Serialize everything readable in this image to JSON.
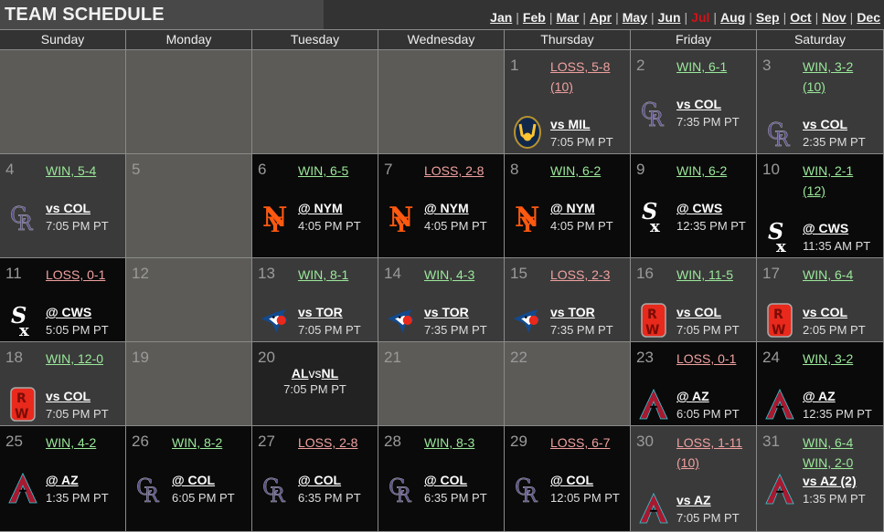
{
  "header": {
    "title": "TEAM SCHEDULE",
    "months": [
      "Jan",
      "Feb",
      "Mar",
      "Apr",
      "May",
      "Jun",
      "Jul",
      "Aug",
      "Sep",
      "Oct",
      "Nov",
      "Dec"
    ],
    "current_month": "Jul"
  },
  "weekdays": [
    "Sunday",
    "Monday",
    "Tuesday",
    "Wednesday",
    "Thursday",
    "Friday",
    "Saturday"
  ],
  "colors": {
    "win": "#9be89b",
    "loss": "#f0a0a0",
    "current_month": "#d0121b",
    "home_bg": "#3a3a3a",
    "away_bg": "#0a0a0a",
    "off_bg": "#5c5b57"
  },
  "days": [
    {
      "day": "1",
      "type": "home",
      "results": [
        {
          "t": "LOSS, 5-8",
          "k": "loss"
        },
        {
          "t": "(10)",
          "k": "loss"
        }
      ],
      "opp": "vs MIL",
      "time": "7:05 PM PT",
      "logo": "brewers-logo-icon"
    },
    {
      "day": "2",
      "type": "home",
      "results": [
        {
          "t": "WIN, 6-1",
          "k": "win"
        }
      ],
      "opp": "vs COL",
      "time": "7:35 PM PT",
      "logo": "rockies-logo-icon"
    },
    {
      "day": "3",
      "type": "home",
      "results": [
        {
          "t": "WIN, 3-2",
          "k": "win"
        },
        {
          "t": "(10)",
          "k": "win"
        }
      ],
      "opp": "vs COL",
      "time": "2:35 PM PT",
      "logo": "rockies-logo-icon"
    },
    {
      "day": "4",
      "type": "home",
      "results": [
        {
          "t": "WIN, 5-4",
          "k": "win"
        }
      ],
      "opp": "vs COL",
      "time": "7:05 PM PT",
      "logo": "rockies-logo-icon"
    },
    {
      "day": "5",
      "type": "off"
    },
    {
      "day": "6",
      "type": "away",
      "results": [
        {
          "t": "WIN, 6-5",
          "k": "win"
        }
      ],
      "opp": "@ NYM",
      "time": "4:05 PM PT",
      "logo": "mets-logo-icon"
    },
    {
      "day": "7",
      "type": "away",
      "results": [
        {
          "t": "LOSS, 2-8",
          "k": "loss"
        }
      ],
      "opp": "@ NYM",
      "time": "4:05 PM PT",
      "logo": "mets-logo-icon"
    },
    {
      "day": "8",
      "type": "away",
      "results": [
        {
          "t": "WIN, 6-2",
          "k": "win"
        }
      ],
      "opp": "@ NYM",
      "time": "4:05 PM PT",
      "logo": "mets-logo-icon"
    },
    {
      "day": "9",
      "type": "away",
      "results": [
        {
          "t": "WIN, 6-2",
          "k": "win"
        }
      ],
      "opp": "@ CWS",
      "time": "12:35 PM PT",
      "logo": "whitesox-logo-icon"
    },
    {
      "day": "10",
      "type": "away",
      "results": [
        {
          "t": "WIN, 2-1",
          "k": "win"
        },
        {
          "t": "(12)",
          "k": "win"
        }
      ],
      "opp": "@ CWS",
      "time": "11:35 AM PT",
      "logo": "whitesox-logo-icon"
    },
    {
      "day": "11",
      "type": "away",
      "results": [
        {
          "t": "LOSS, 0-1",
          "k": "loss"
        }
      ],
      "opp": "@ CWS",
      "time": "5:05 PM PT",
      "logo": "whitesox-logo-icon"
    },
    {
      "day": "12",
      "type": "off"
    },
    {
      "day": "13",
      "type": "home",
      "results": [
        {
          "t": "WIN, 8-1",
          "k": "win"
        }
      ],
      "opp": "vs TOR",
      "time": "7:05 PM PT",
      "logo": "bluejays-logo-icon"
    },
    {
      "day": "14",
      "type": "home",
      "results": [
        {
          "t": "WIN, 4-3",
          "k": "win"
        }
      ],
      "opp": "vs TOR",
      "time": "7:35 PM PT",
      "logo": "bluejays-logo-icon"
    },
    {
      "day": "15",
      "type": "home",
      "results": [
        {
          "t": "LOSS, 2-3",
          "k": "loss"
        }
      ],
      "opp": "vs TOR",
      "time": "7:35 PM PT",
      "logo": "bluejays-logo-icon"
    },
    {
      "day": "16",
      "type": "home",
      "results": [
        {
          "t": "WIN, 11-5",
          "k": "win"
        }
      ],
      "opp": "vs COL",
      "time": "7:05 PM PT",
      "logo": "rw-logo-icon"
    },
    {
      "day": "17",
      "type": "home",
      "results": [
        {
          "t": "WIN, 6-4",
          "k": "win"
        }
      ],
      "opp": "vs COL",
      "time": "2:05 PM PT",
      "logo": "rw-logo-icon"
    },
    {
      "day": "18",
      "type": "home",
      "results": [
        {
          "t": "WIN, 12-0",
          "k": "win"
        }
      ],
      "opp": "vs COL",
      "time": "7:05 PM PT",
      "logo": "rw-logo-icon"
    },
    {
      "day": "19",
      "type": "off"
    },
    {
      "day": "20",
      "type": "asg",
      "al": "AL",
      "vs": "vs",
      "nl": "NL",
      "time": "7:05 PM PT"
    },
    {
      "day": "21",
      "type": "off"
    },
    {
      "day": "22",
      "type": "off"
    },
    {
      "day": "23",
      "type": "away",
      "results": [
        {
          "t": "LOSS, 0-1",
          "k": "loss"
        }
      ],
      "opp": "@ AZ",
      "time": "6:05 PM PT",
      "logo": "dbacks-logo-icon"
    },
    {
      "day": "24",
      "type": "away",
      "results": [
        {
          "t": "WIN, 3-2",
          "k": "win"
        }
      ],
      "opp": "@ AZ",
      "time": "12:35 PM PT",
      "logo": "dbacks-logo-icon"
    },
    {
      "day": "25",
      "type": "away",
      "results": [
        {
          "t": "WIN, 4-2",
          "k": "win"
        }
      ],
      "opp": "@ AZ",
      "time": "1:35 PM PT",
      "logo": "dbacks-logo-icon"
    },
    {
      "day": "26",
      "type": "away",
      "results": [
        {
          "t": "WIN, 8-2",
          "k": "win"
        }
      ],
      "opp": "@ COL",
      "time": "6:05 PM PT",
      "logo": "rockies-logo-icon"
    },
    {
      "day": "27",
      "type": "away",
      "results": [
        {
          "t": "LOSS, 2-8",
          "k": "loss"
        }
      ],
      "opp": "@ COL",
      "time": "6:35 PM PT",
      "logo": "rockies-logo-icon"
    },
    {
      "day": "28",
      "type": "away",
      "results": [
        {
          "t": "WIN, 8-3",
          "k": "win"
        }
      ],
      "opp": "@ COL",
      "time": "6:35 PM PT",
      "logo": "rockies-logo-icon"
    },
    {
      "day": "29",
      "type": "away",
      "results": [
        {
          "t": "LOSS, 6-7",
          "k": "loss"
        }
      ],
      "opp": "@ COL",
      "time": "12:05 PM PT",
      "logo": "rockies-logo-icon"
    },
    {
      "day": "30",
      "type": "home",
      "results": [
        {
          "t": "LOSS, 1-11",
          "k": "loss"
        },
        {
          "t": "(10)",
          "k": "loss"
        }
      ],
      "opp": "vs AZ",
      "time": "7:05 PM PT",
      "logo": "dbacks-logo-icon"
    },
    {
      "day": "31",
      "type": "home",
      "results": [
        {
          "t": "WIN, 6-4",
          "k": "win"
        },
        {
          "t": "WIN, 2-0",
          "k": "win"
        }
      ],
      "opp": "vs AZ (2)",
      "time": "1:35 PM PT",
      "logo": "dbacks-logo-icon"
    }
  ]
}
